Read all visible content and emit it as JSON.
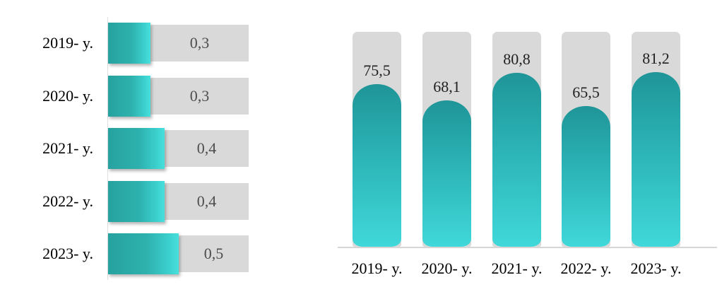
{
  "chart_data": [
    {
      "type": "bar",
      "orientation": "horizontal",
      "title": "",
      "xlabel": "",
      "ylabel": "",
      "categories": [
        "2019- y.",
        "2020- y.",
        "2021- y.",
        "2022- y.",
        "2023- y."
      ],
      "values": [
        0.3,
        0.3,
        0.4,
        0.4,
        0.5
      ],
      "value_labels": [
        "0,3",
        "0,3",
        "0,4",
        "0,4",
        "0,5"
      ],
      "xlim": [
        0,
        1
      ],
      "grid": false,
      "legend": false,
      "bar_gradient": [
        "#26a2a0",
        "#48e0dc"
      ],
      "track_color": "#d9d9d9",
      "value_label_color": "#4d4d4d",
      "category_label_color": "#000000"
    },
    {
      "type": "bar",
      "orientation": "vertical",
      "title": "",
      "xlabel": "",
      "ylabel": "",
      "categories": [
        "2019- y.",
        "2020- y.",
        "2021- y.",
        "2022- y.",
        "2023- y."
      ],
      "values": [
        75.5,
        68.1,
        80.8,
        65.5,
        81.2
      ],
      "value_labels": [
        "75,5",
        "68,1",
        "80,8",
        "65,5",
        "81,2"
      ],
      "ylim": [
        0,
        100
      ],
      "grid": false,
      "legend": false,
      "bar_gradient": [
        "#1f9598",
        "#40d8da"
      ],
      "track_color": "#d9d9d9",
      "value_label_color": "#212121",
      "category_label_color": "#000000",
      "baseline_color": "#d6d6d6"
    }
  ]
}
